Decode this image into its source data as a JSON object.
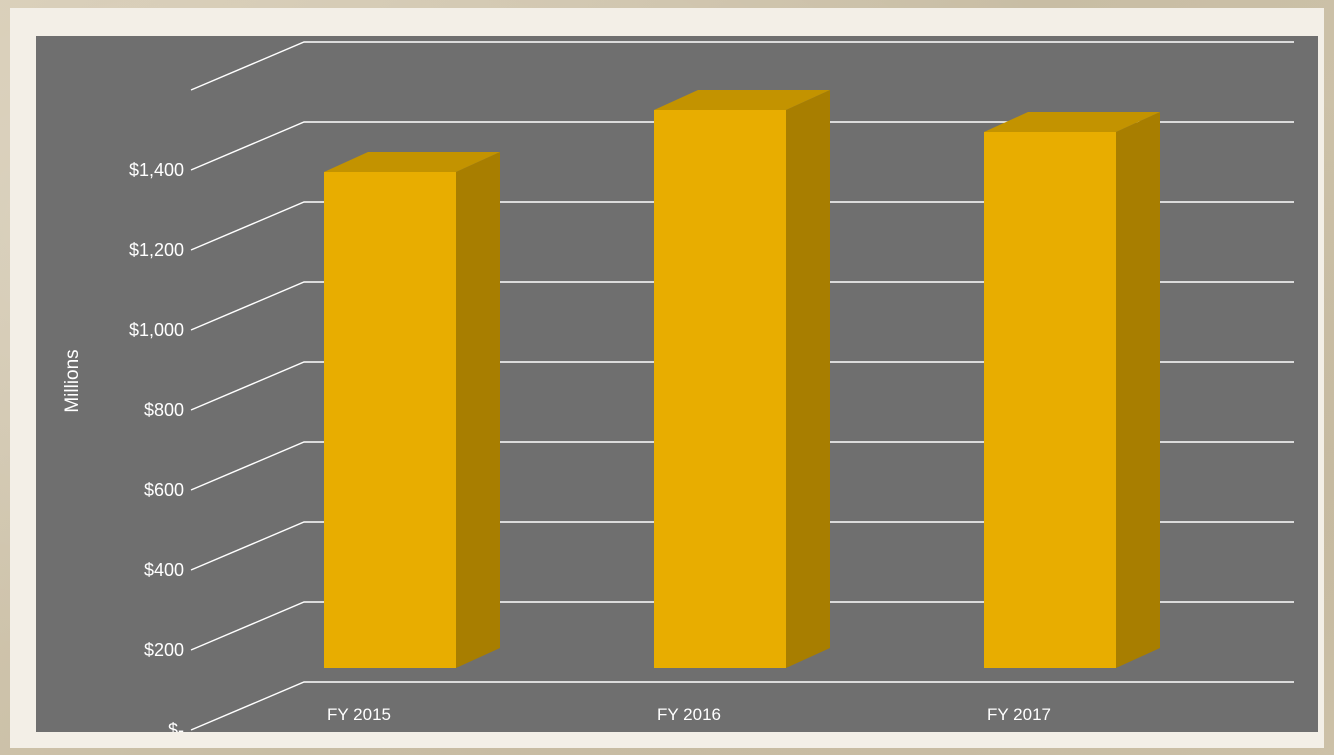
{
  "chart_data": {
    "type": "bar",
    "style": "3d-column",
    "categories": [
      "FY 2015",
      "FY 2016",
      "FY 2017"
    ],
    "series": [
      {
        "values": [
          1240,
          1395,
          1340
        ]
      }
    ],
    "ylabel": "Millions",
    "yticks": [
      "$-",
      "$200",
      "$400",
      "$600",
      "$800",
      "$1,000",
      "$1,200",
      "$1,400"
    ],
    "ylim": [
      0,
      1600
    ],
    "grid": true,
    "legend": "none",
    "colors": {
      "bar_front": "#e8ad00",
      "bar_top": "#c39300",
      "bar_side": "#a87e00",
      "background": "#6f6f6f",
      "gridline": "#ffffff"
    }
  }
}
